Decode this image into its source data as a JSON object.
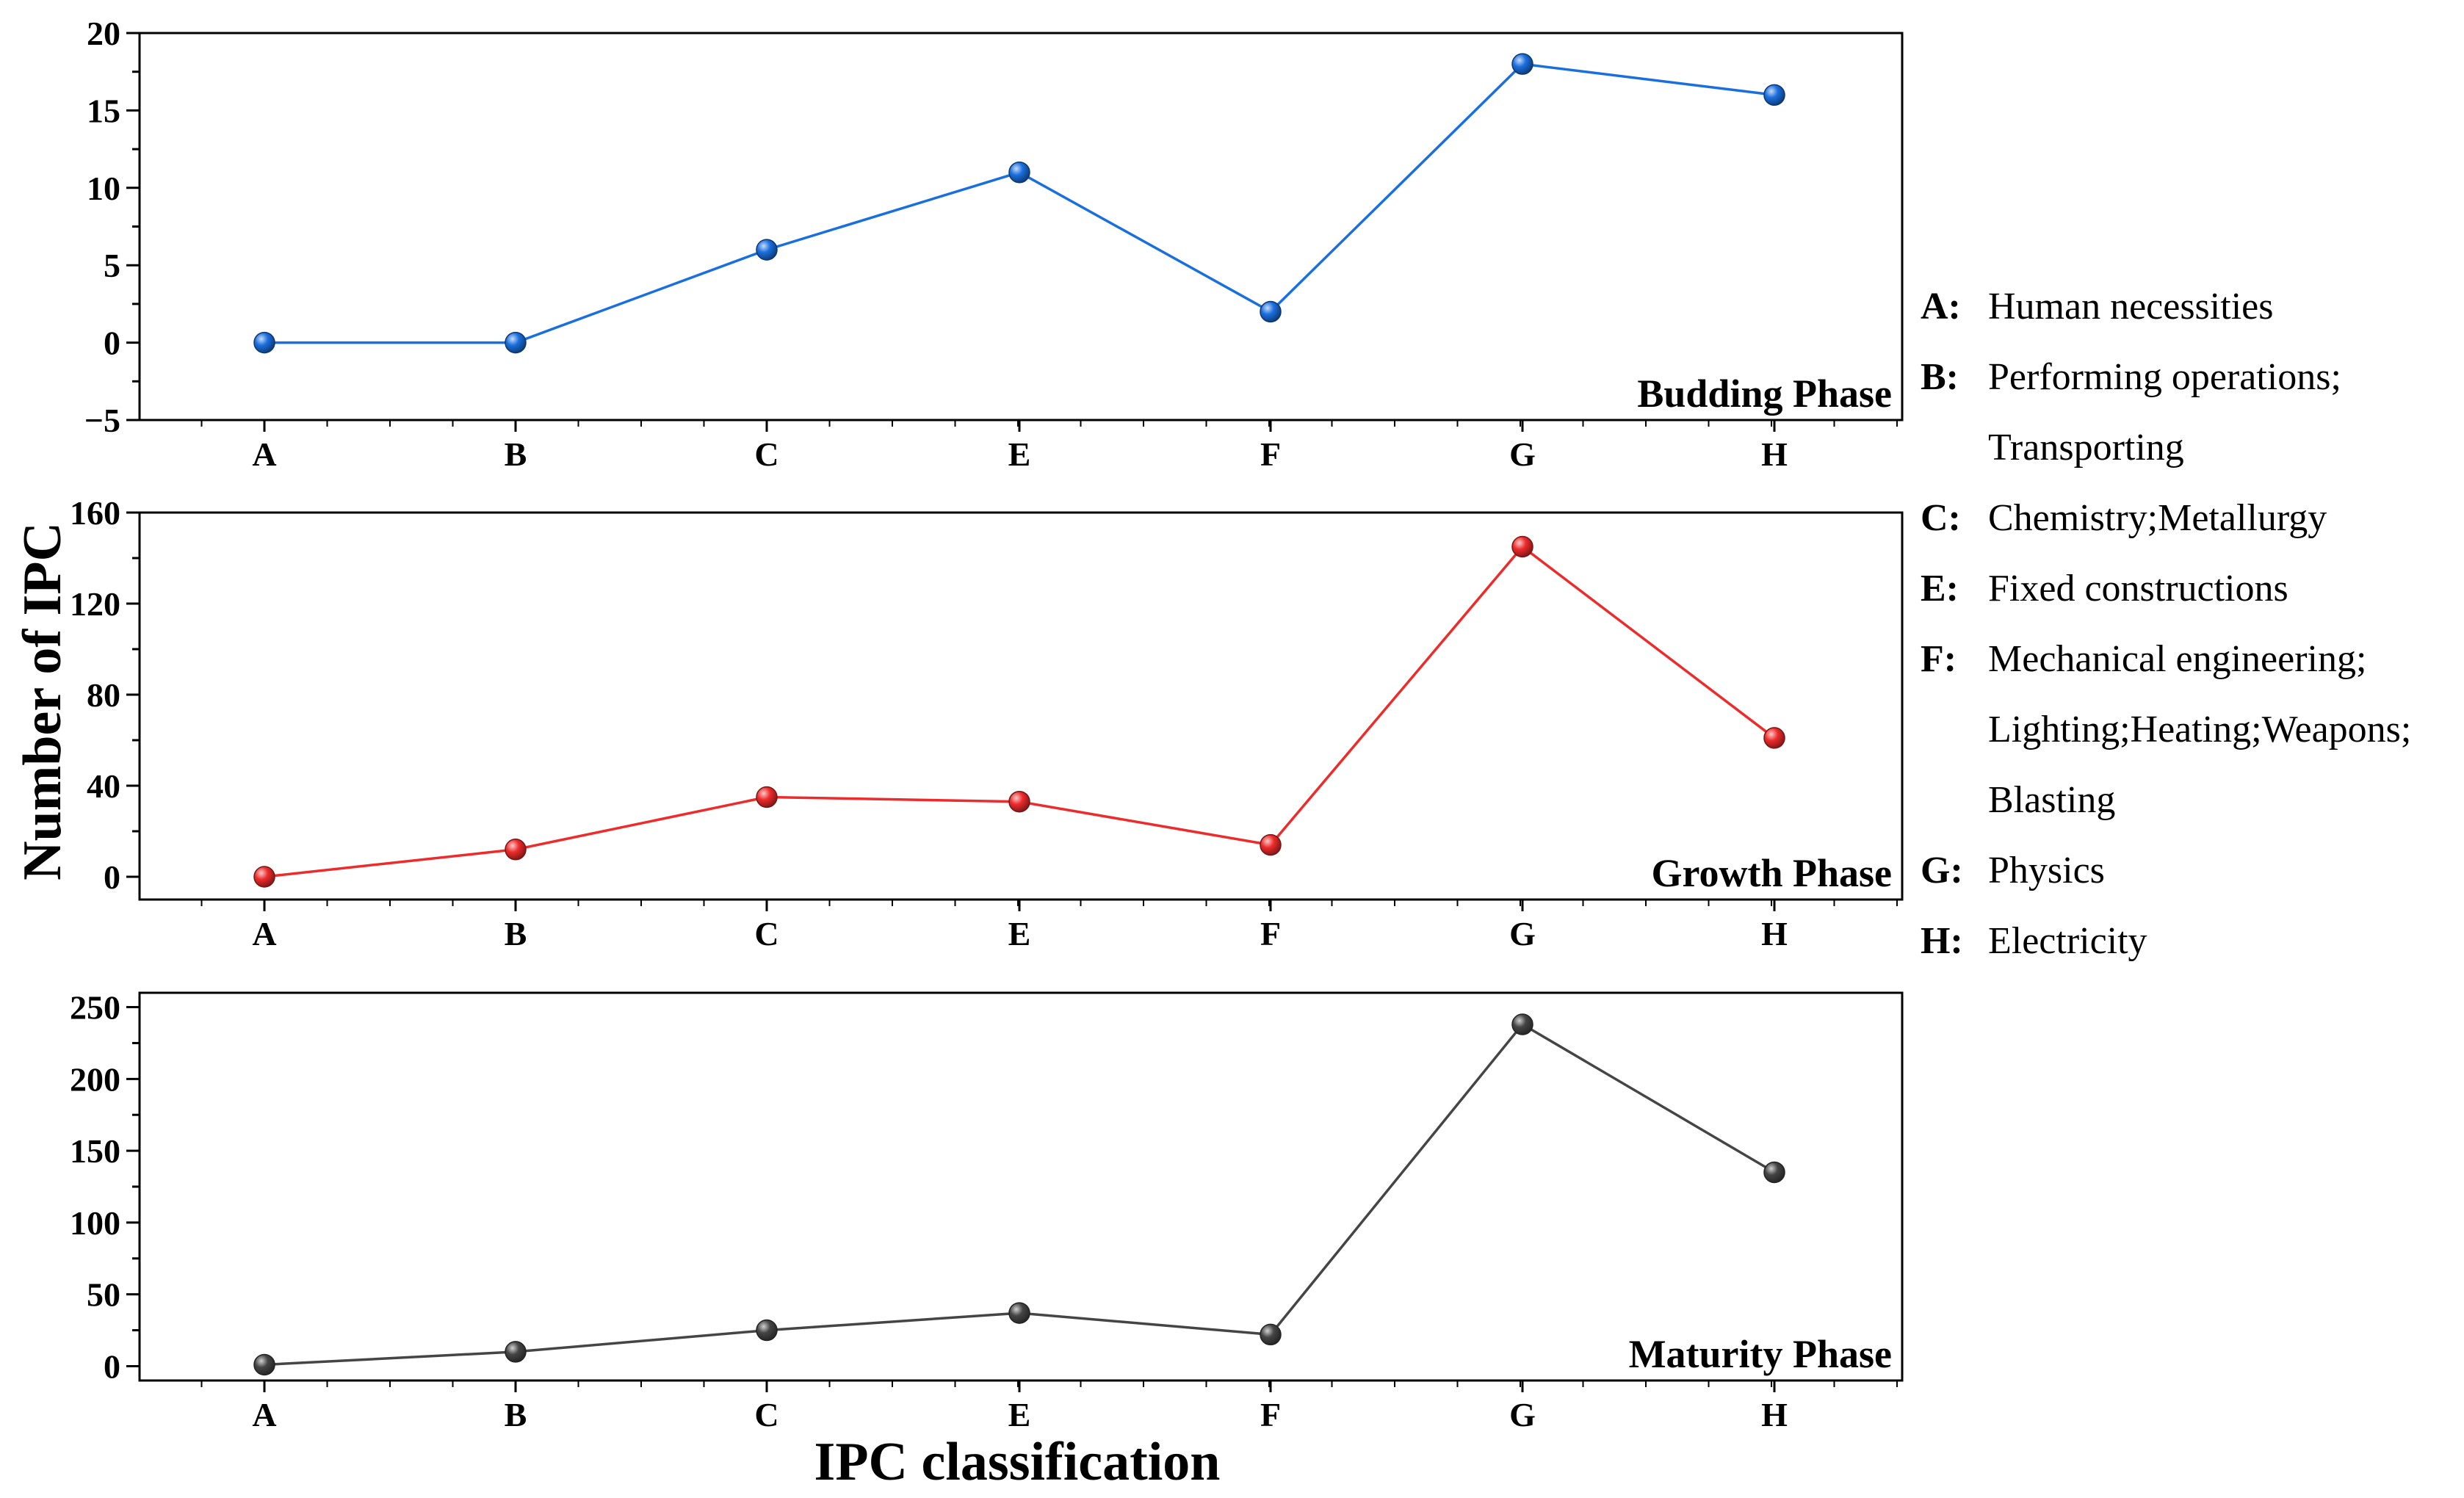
{
  "chart_data": [
    {
      "type": "line",
      "panel_label": "Budding Phase",
      "categories": [
        "A",
        "B",
        "C",
        "E",
        "F",
        "G",
        "H"
      ],
      "values": [
        0,
        0,
        6,
        11,
        2,
        18,
        16
      ],
      "ylim": [
        -5,
        20
      ],
      "yticks": [
        -5,
        0,
        5,
        10,
        15,
        20
      ],
      "ytick_labels": [
        "−5",
        "0",
        "5",
        "10",
        "15",
        "20"
      ],
      "color": "#1a6fdf",
      "grid": false
    },
    {
      "type": "line",
      "panel_label": "Growth Phase",
      "categories": [
        "A",
        "B",
        "C",
        "E",
        "F",
        "G",
        "H"
      ],
      "values": [
        0,
        12,
        35,
        33,
        14,
        145,
        61
      ],
      "ylim": [
        -10,
        160
      ],
      "yticks": [
        0,
        40,
        80,
        120,
        160
      ],
      "ytick_labels": [
        "0",
        "40",
        "80",
        "120",
        "160"
      ],
      "color": "#ee2b2b",
      "grid": false
    },
    {
      "type": "line",
      "panel_label": "Maturity Phase",
      "categories": [
        "A",
        "B",
        "C",
        "E",
        "F",
        "G",
        "H"
      ],
      "values": [
        1,
        10,
        25,
        37,
        22,
        238,
        135
      ],
      "ylim": [
        -10,
        260
      ],
      "yticks": [
        0,
        50,
        100,
        150,
        200,
        250
      ],
      "ytick_labels": [
        "0",
        "50",
        "100",
        "150",
        "200",
        "250"
      ],
      "color": "#454545",
      "grid": false
    }
  ],
  "axes": {
    "ylabel": "Number of IPC",
    "xlabel": "IPC classification"
  },
  "legend": [
    {
      "key": "A:",
      "lines": [
        "Human necessities"
      ]
    },
    {
      "key": "B:",
      "lines": [
        "Performing operations;",
        "Transporting"
      ]
    },
    {
      "key": "C:",
      "lines": [
        "Chemistry;Metallurgy"
      ]
    },
    {
      "key": "E:",
      "lines": [
        "Fixed constructions"
      ]
    },
    {
      "key": "F:",
      "lines": [
        "Mechanical engineering;",
        "Lighting;Heating;Weapons;",
        "Blasting"
      ]
    },
    {
      "key": "G:",
      "lines": [
        "Physics"
      ]
    },
    {
      "key": "H:",
      "lines": [
        "Electricity"
      ]
    }
  ]
}
